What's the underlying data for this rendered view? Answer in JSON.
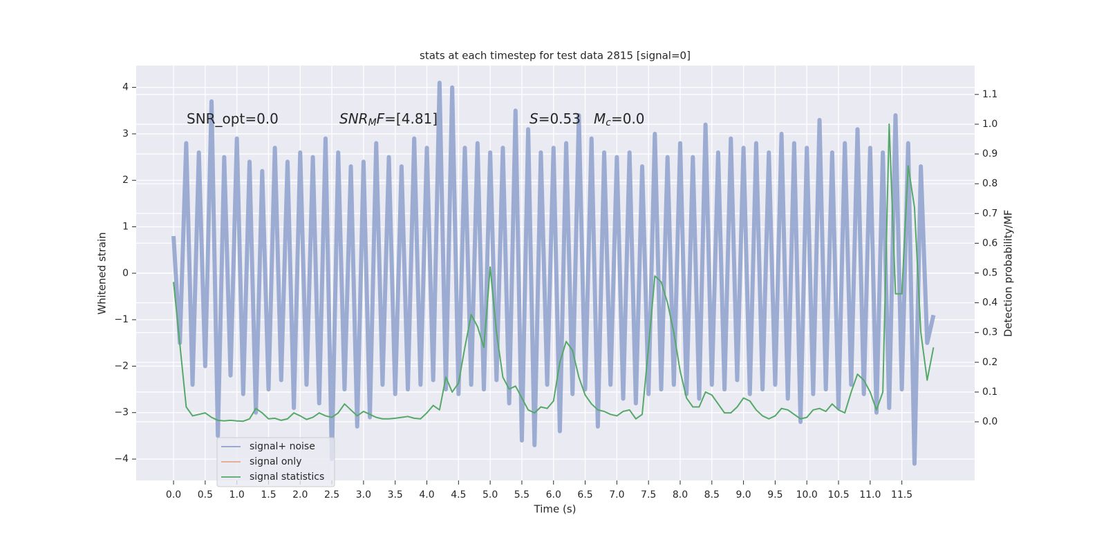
{
  "chart_data": {
    "type": "line",
    "title": "stats at each timestep for test data 2815 [signal=0]",
    "xlabel": "Time (s)",
    "ylabel": "Whitened strain",
    "y2label": "Detection probability/MF",
    "annotations": [
      [
        {
          "text": "SNR_opt=0.0"
        }
      ],
      [
        {
          "text": "SNR",
          "style": "italic"
        },
        {
          "text": "M",
          "style": "italic-sub"
        },
        {
          "text": "F",
          "style": "italic"
        },
        {
          "text": "=[4.81]"
        }
      ],
      [
        {
          "text": "S",
          "style": "italic"
        },
        {
          "text": "=0.53"
        }
      ],
      [
        {
          "text": "M",
          "style": "italic"
        },
        {
          "text": "c",
          "style": "italic-sub"
        },
        {
          "text": "=0.0"
        }
      ]
    ],
    "x": [
      0.0,
      0.1,
      0.2,
      0.3,
      0.4,
      0.5,
      0.6,
      0.7,
      0.8,
      0.9,
      1.0,
      1.1,
      1.2,
      1.3,
      1.4,
      1.5,
      1.6,
      1.7,
      1.8,
      1.9,
      2.0,
      2.1,
      2.2,
      2.3,
      2.4,
      2.5,
      2.6,
      2.7,
      2.8,
      2.9,
      3.0,
      3.1,
      3.2,
      3.3,
      3.4,
      3.5,
      3.6,
      3.7,
      3.8,
      3.9,
      4.0,
      4.1,
      4.2,
      4.3,
      4.4,
      4.5,
      4.6,
      4.7,
      4.8,
      4.9,
      5.0,
      5.1,
      5.2,
      5.3,
      5.4,
      5.5,
      5.6,
      5.7,
      5.8,
      5.9,
      6.0,
      6.1,
      6.2,
      6.3,
      6.4,
      6.5,
      6.6,
      6.7,
      6.8,
      6.9,
      7.0,
      7.1,
      7.2,
      7.3,
      7.4,
      7.5,
      7.6,
      7.7,
      7.8,
      7.9,
      8.0,
      8.1,
      8.2,
      8.3,
      8.4,
      8.5,
      8.6,
      8.7,
      8.8,
      8.9,
      9.0,
      9.1,
      9.2,
      9.3,
      9.4,
      9.5,
      9.6,
      9.7,
      9.8,
      9.9,
      10.0,
      10.1,
      10.2,
      10.3,
      10.4,
      10.5,
      10.6,
      10.7,
      10.8,
      10.9,
      11.0,
      11.1,
      11.2,
      11.3,
      11.4,
      11.5,
      11.6,
      11.7,
      11.8,
      11.9,
      12.0
    ],
    "series": [
      {
        "name": "signal+ noise",
        "color": "#8da0cb",
        "values": [
          0.8,
          -1.5,
          2.8,
          -2.4,
          2.6,
          -2.0,
          3.7,
          -3.5,
          2.5,
          -2.2,
          2.9,
          -2.6,
          2.4,
          -3.0,
          2.2,
          -2.5,
          2.7,
          -2.3,
          2.4,
          -2.9,
          2.6,
          -2.4,
          2.5,
          -2.8,
          2.9,
          -4.0,
          2.6,
          -2.5,
          2.3,
          -3.3,
          2.4,
          -3.1,
          2.8,
          -2.4,
          2.5,
          -2.6,
          2.3,
          -2.5,
          2.9,
          -2.4,
          2.7,
          -2.3,
          4.1,
          -2.5,
          4.0,
          -2.6,
          2.7,
          -2.4,
          2.8,
          -2.5,
          2.6,
          -2.3,
          2.7,
          -2.8,
          3.5,
          -3.6,
          3.1,
          -3.7,
          2.6,
          -2.4,
          2.7,
          -3.4,
          2.8,
          -2.6,
          3.4,
          -2.5,
          2.9,
          -3.3,
          2.6,
          -2.4,
          2.5,
          -2.7,
          2.6,
          -2.8,
          2.3,
          -2.6,
          3.0,
          -2.5,
          2.5,
          -2.4,
          2.8,
          -2.6,
          2.5,
          -2.7,
          3.2,
          -2.4,
          2.6,
          -2.5,
          2.9,
          -2.3,
          2.7,
          -2.6,
          2.8,
          -2.5,
          2.6,
          -2.4,
          3.0,
          -2.7,
          2.8,
          -3.2,
          2.7,
          -2.6,
          3.3,
          -2.5,
          2.6,
          -2.9,
          2.8,
          -2.4,
          3.1,
          -2.6,
          2.7,
          -3.0,
          2.6,
          -2.9,
          3.4,
          -2.5,
          2.8,
          -4.1,
          2.3,
          -1.5,
          -0.9
        ]
      },
      {
        "name": "signal only",
        "color": "#e5a58a"
      },
      {
        "name": "signal statistics",
        "color": "#55a868",
        "axis": "y2",
        "values": [
          0.47,
          0.26,
          0.05,
          0.02,
          0.025,
          0.03,
          0.015,
          0.005,
          0.003,
          0.005,
          0.003,
          0.002,
          0.01,
          0.045,
          0.03,
          0.01,
          0.012,
          0.005,
          0.01,
          0.03,
          0.02,
          0.008,
          0.015,
          0.03,
          0.02,
          0.015,
          0.03,
          0.06,
          0.04,
          0.02,
          0.035,
          0.025,
          0.015,
          0.01,
          0.01,
          0.012,
          0.015,
          0.018,
          0.012,
          0.01,
          0.03,
          0.055,
          0.04,
          0.15,
          0.1,
          0.13,
          0.25,
          0.36,
          0.32,
          0.25,
          0.52,
          0.3,
          0.15,
          0.11,
          0.12,
          0.08,
          0.04,
          0.03,
          0.05,
          0.045,
          0.07,
          0.2,
          0.27,
          0.24,
          0.15,
          0.09,
          0.06,
          0.04,
          0.035,
          0.025,
          0.02,
          0.035,
          0.04,
          0.01,
          0.025,
          0.25,
          0.49,
          0.47,
          0.4,
          0.3,
          0.17,
          0.08,
          0.05,
          0.05,
          0.1,
          0.09,
          0.06,
          0.03,
          0.03,
          0.05,
          0.08,
          0.07,
          0.04,
          0.02,
          0.01,
          0.02,
          0.045,
          0.04,
          0.025,
          0.01,
          0.015,
          0.04,
          0.045,
          0.035,
          0.06,
          0.04,
          0.03,
          0.1,
          0.16,
          0.14,
          0.1,
          0.04,
          0.1,
          1.0,
          0.43,
          0.43,
          0.86,
          0.72,
          0.3,
          0.14,
          0.25
        ]
      }
    ],
    "xlim": [
      -0.59,
      12.65
    ],
    "xticks": [
      {
        "value": 0,
        "label": "0.0"
      },
      0.5,
      {
        "value": 1,
        "label": "1.0"
      },
      1.5,
      {
        "value": 2,
        "label": "2.0"
      },
      2.5,
      {
        "value": 3,
        "label": "3.0"
      },
      3.5,
      {
        "value": 4,
        "label": "4.0"
      },
      4.5,
      {
        "value": 5,
        "label": "5.0"
      },
      5.5,
      {
        "value": 6,
        "label": "6.0"
      },
      6.5,
      {
        "value": 7,
        "label": "7.0"
      },
      7.5,
      {
        "value": 8,
        "label": "8.0"
      },
      8.5,
      {
        "value": 9,
        "label": "9.0"
      },
      9.5,
      {
        "value": 10,
        "label": "10.0"
      },
      10.5,
      {
        "value": 11,
        "label": "11.0"
      },
      11.5
    ],
    "ylim": [
      -4.46,
      4.47
    ],
    "yticks": [
      {
        "value": -4,
        "label": "−4"
      },
      {
        "value": -3,
        "label": "−3"
      },
      {
        "value": -2,
        "label": "−2"
      },
      {
        "value": -1,
        "label": "−1"
      },
      0,
      1,
      2,
      3,
      4
    ],
    "y2lim": [
      -0.197,
      1.197
    ],
    "y2ticks": [
      {
        "value": 0,
        "label": "0.0"
      },
      0.1,
      0.2,
      0.3,
      0.4,
      0.5,
      0.6,
      0.7,
      0.8,
      0.9,
      {
        "value": 1,
        "label": "1.0"
      },
      1.1
    ],
    "grid": true,
    "legend": "lower left"
  }
}
